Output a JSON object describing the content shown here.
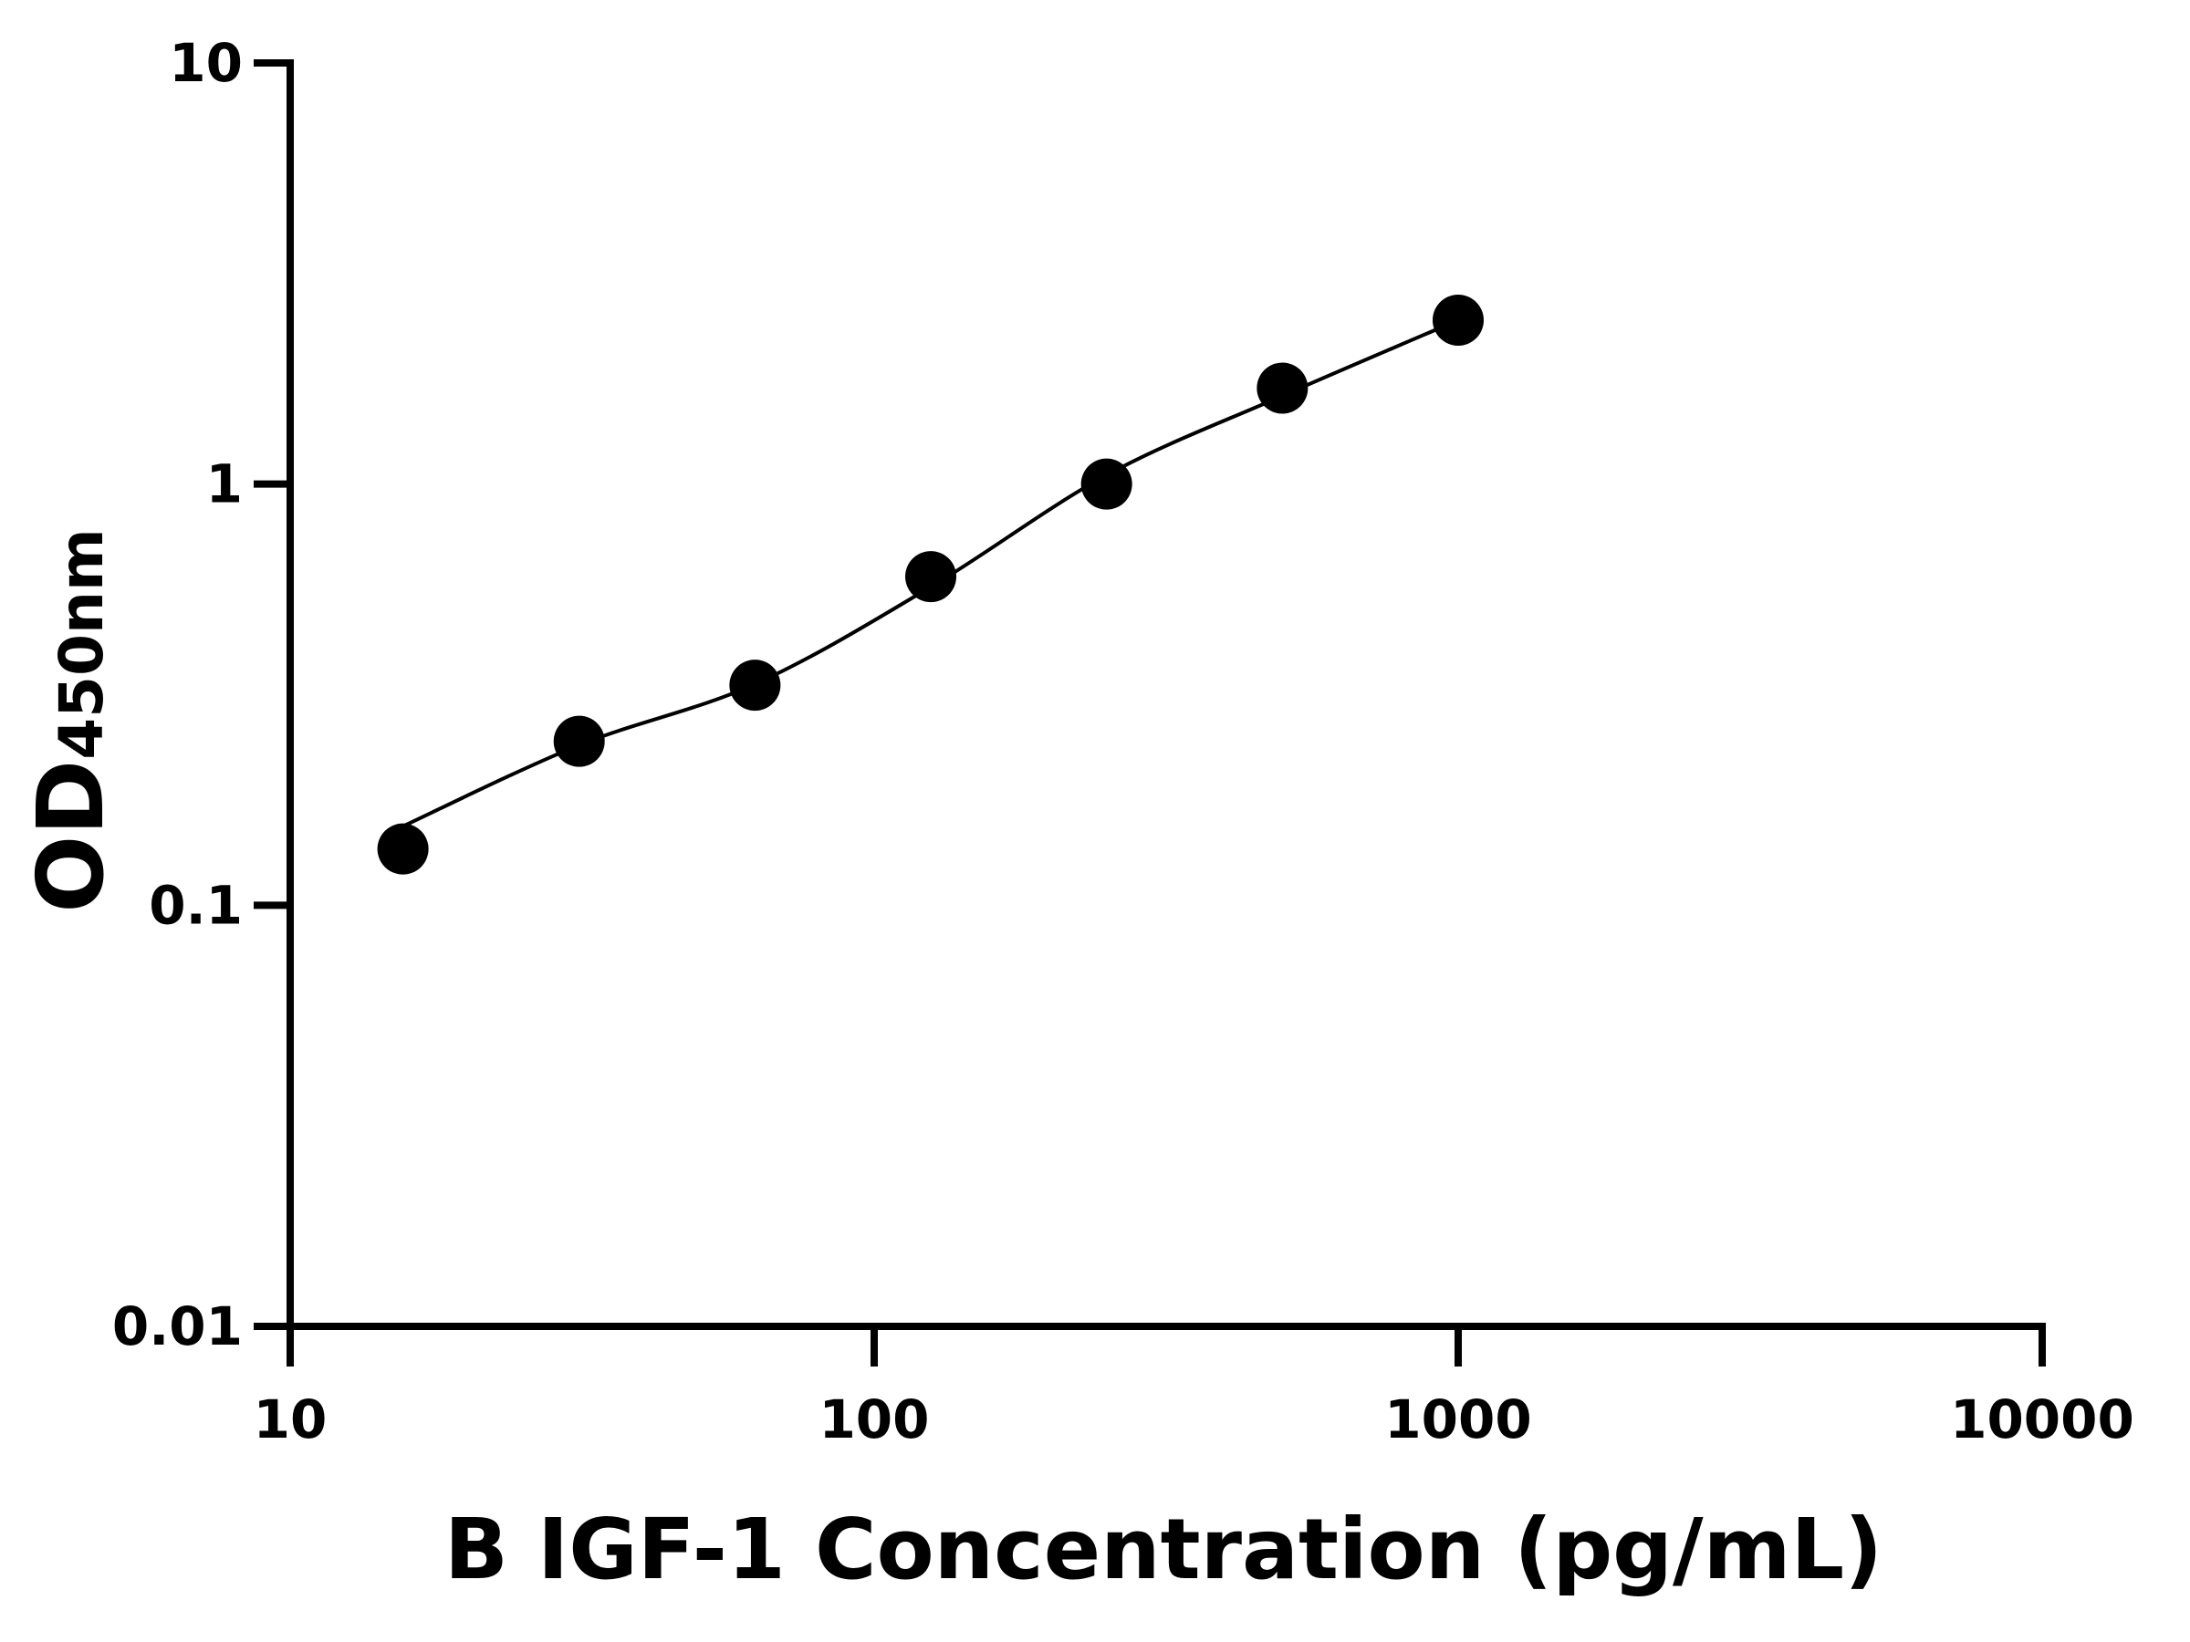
{
  "chart_data": {
    "type": "scatter",
    "x_label": "B IGF-1 Concentration (pg/mL)",
    "y_label": "OD",
    "y_label_subscript": "450nm",
    "x": [
      15.6,
      31.25,
      62.5,
      125,
      250,
      500,
      1000
    ],
    "series": [
      {
        "color": "#000000",
        "values": [
          0.136,
          0.245,
          0.333,
          0.603,
          1.0,
          1.69,
          2.45
        ],
        "marker": "circle"
      },
      {
        "color": "#000000",
        "values": [
          0.154,
          0.24,
          0.335,
          0.57,
          1.05,
          1.62,
          2.45
        ],
        "line": true
      }
    ],
    "xscale": "log",
    "yscale": "log",
    "xlim": [
      10,
      10000
    ],
    "ylim": [
      0.01,
      10
    ],
    "xticks": [
      10,
      100,
      1000,
      10000
    ],
    "yticks": [
      0.01,
      0.1,
      1,
      10
    ]
  }
}
